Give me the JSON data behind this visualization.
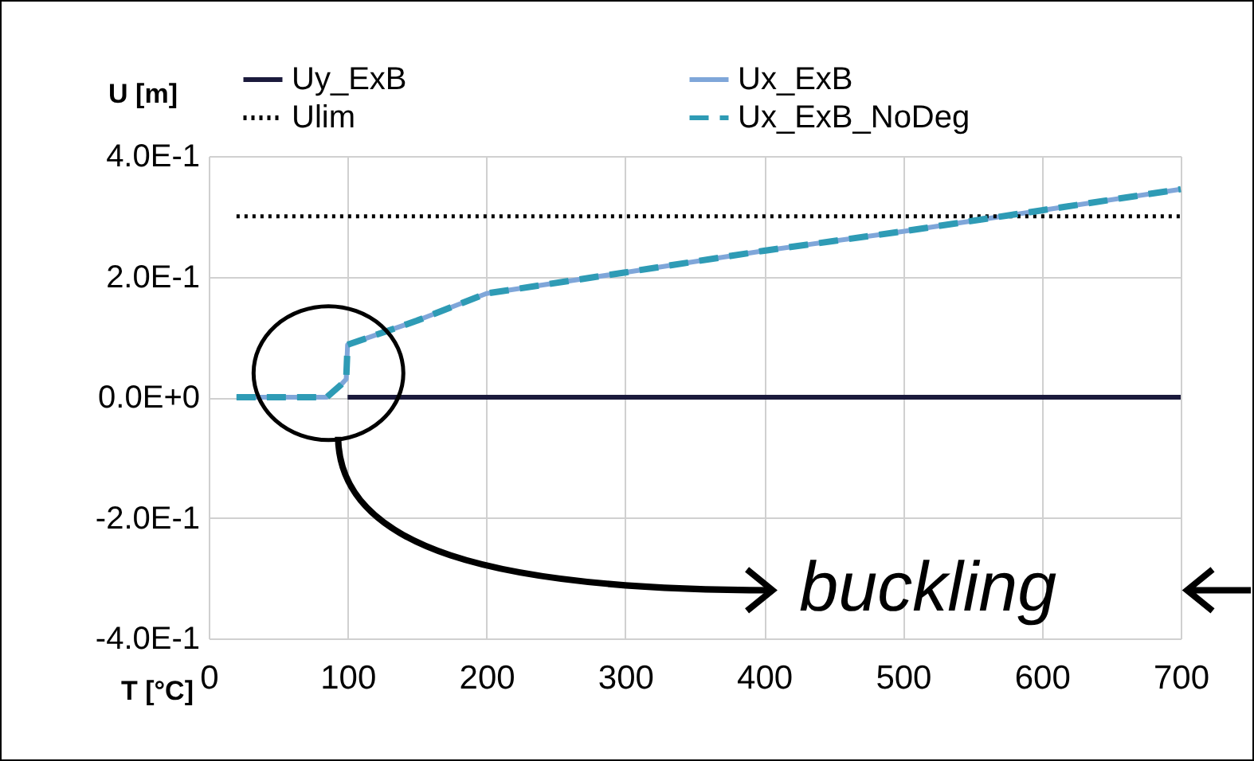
{
  "chart_data": {
    "type": "line",
    "xlabel": "T [°C]",
    "ylabel": "U [m]",
    "xlim": [
      0,
      700
    ],
    "xticks": [
      0,
      100,
      200,
      300,
      400,
      500,
      600,
      700
    ],
    "ylim": [
      -0.4,
      0.4
    ],
    "yticks": [
      {
        "value": 0.4,
        "label": "4.0E-1"
      },
      {
        "value": 0.2,
        "label": "2.0E-1"
      },
      {
        "value": 0,
        "label": "0.0E+0"
      },
      {
        "value": -0.2,
        "label": "-2.0E-1"
      },
      {
        "value": -0.4,
        "label": "-4.0E-1"
      }
    ],
    "grid": true,
    "legend": "top",
    "marker": "none",
    "annotations": [
      "buckling"
    ],
    "series": [
      {
        "name": "Uy_ExB",
        "color": "#1b1a3c",
        "line_style": "solid",
        "x": [
          100,
          700
        ],
        "values": [
          0,
          0
        ]
      },
      {
        "name": "Ux_ExB",
        "color": "#7fa6d9",
        "line_style": "solid",
        "x": [
          20,
          50,
          85,
          95,
          99,
          100,
          150,
          200,
          300,
          400,
          500,
          600,
          700
        ],
        "values": [
          0,
          0,
          0,
          0.02,
          0.03,
          0.087,
          0.127,
          0.172,
          0.207,
          0.243,
          0.275,
          0.31,
          0.345
        ]
      },
      {
        "name": "Ulim",
        "color": "#000000",
        "line_style": "dotted",
        "x": [
          20,
          700
        ],
        "values": [
          0.3,
          0.3
        ]
      },
      {
        "name": "Ux_ExB_NoDeg",
        "color": "#2e9bb5",
        "line_style": "dashed",
        "x": [
          20,
          50,
          85,
          95,
          99,
          100,
          150,
          200,
          300,
          400,
          500,
          600,
          700
        ],
        "values": [
          0,
          0,
          0,
          0.02,
          0.03,
          0.087,
          0.127,
          0.172,
          0.207,
          0.243,
          0.275,
          0.31,
          0.345
        ]
      }
    ]
  }
}
